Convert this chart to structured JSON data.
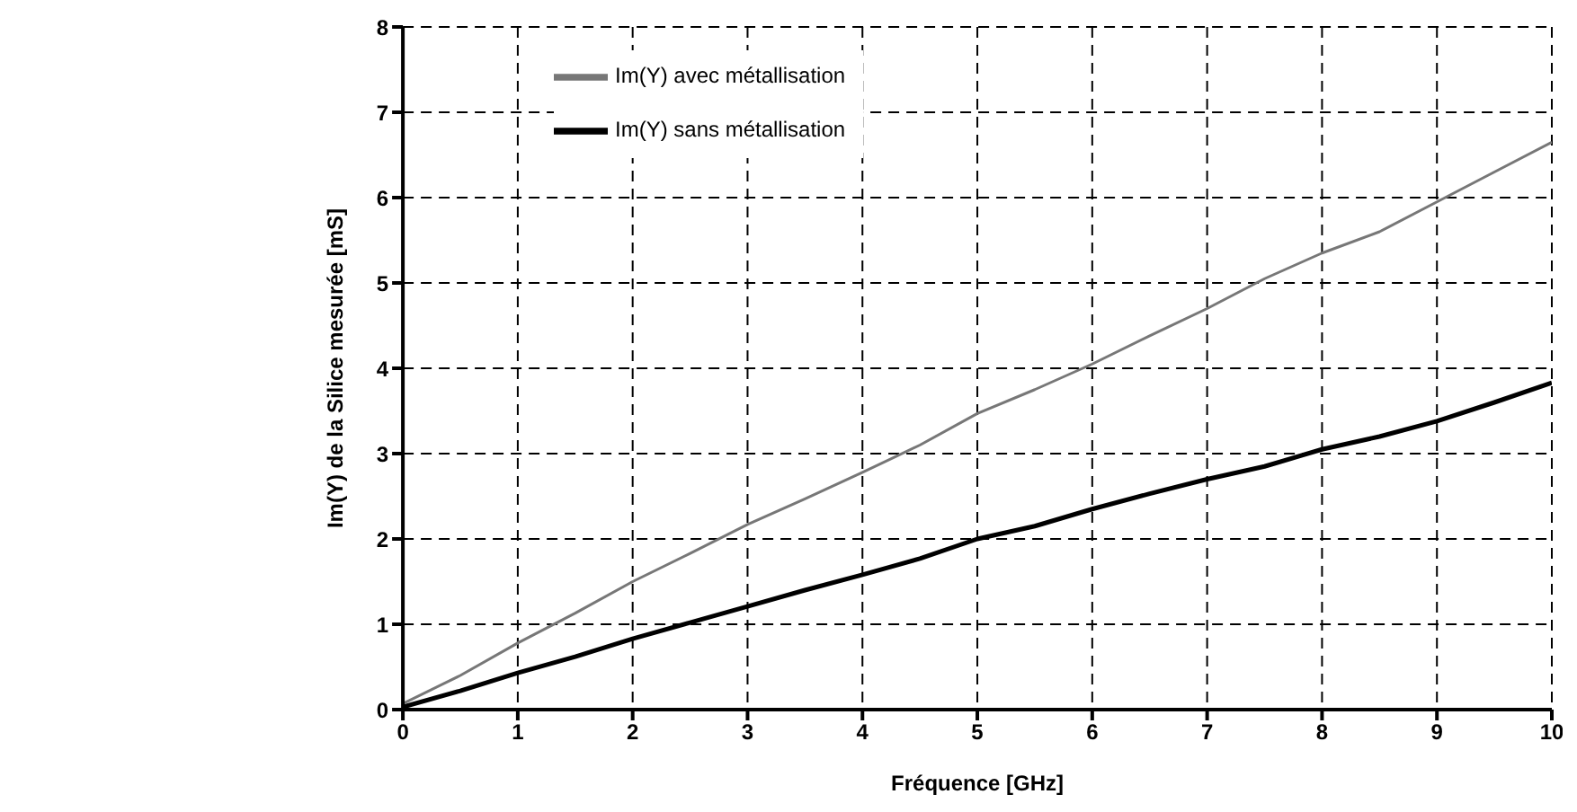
{
  "chart_data": {
    "type": "line",
    "xlabel": "Fréquence [GHz]",
    "ylabel": "Im(Y) de la Silice mesurée [mS]",
    "x": [
      0,
      0.5,
      1,
      1.5,
      2,
      2.5,
      3,
      3.5,
      4,
      4.5,
      5,
      5.5,
      6,
      6.5,
      7,
      7.5,
      8,
      8.5,
      9,
      9.5,
      10
    ],
    "series": [
      {
        "name": "Im(Y) sans métallisation",
        "color": "#000000",
        "values": [
          0.03,
          0.22,
          0.43,
          0.62,
          0.83,
          1.02,
          1.21,
          1.4,
          1.58,
          1.77,
          2.0,
          2.15,
          2.35,
          2.53,
          2.7,
          2.85,
          3.05,
          3.2,
          3.38,
          3.6,
          3.83
        ]
      },
      {
        "name": "Im(Y) avec métallisation",
        "color": "#777777",
        "values": [
          0.07,
          0.4,
          0.78,
          1.13,
          1.5,
          1.83,
          2.17,
          2.47,
          2.78,
          3.1,
          3.47,
          3.75,
          4.05,
          4.38,
          4.7,
          5.05,
          5.35,
          5.6,
          5.95,
          6.3,
          6.65
        ]
      }
    ],
    "xlim": [
      0,
      10
    ],
    "xticks": [
      0,
      1,
      2,
      3,
      4,
      5,
      6,
      7,
      8,
      9,
      10
    ],
    "ylim": [
      0,
      8
    ],
    "yticks": [
      0,
      1,
      2,
      3,
      4,
      5,
      6,
      7,
      8
    ],
    "grid": true,
    "legend": "top",
    "marker": "none",
    "line_style": "solid"
  }
}
